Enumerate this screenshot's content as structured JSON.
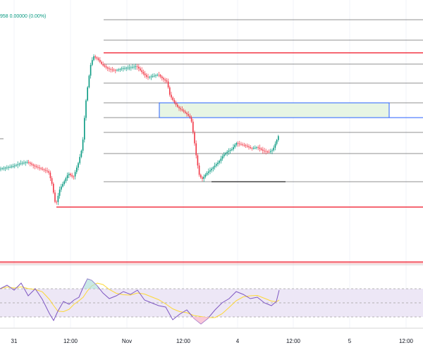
{
  "legend": {
    "ohlc_text": "958  0.00000 (0.00%)"
  },
  "time_axis": {
    "labels": [
      "31",
      "12:00",
      "Nov",
      "12:00",
      "4",
      "12:00",
      "5",
      "12:00"
    ]
  },
  "colors": {
    "up": "#089981",
    "down": "#f23645",
    "fib_line": "#6b6b6b",
    "support_resistance": "#f23645",
    "zone_fill": "#e7f5e4",
    "zone_border": "#2962ff",
    "rsi_line": "#7e57c2",
    "rsi_ma": "#fdd835",
    "rsi_band": "#ede7f6"
  },
  "chart_data": {
    "type": "candlestick",
    "price_points": [
      [
        0,
        240
      ],
      [
        10,
        238
      ],
      [
        20,
        236
      ],
      [
        30,
        232
      ],
      [
        40,
        230
      ],
      [
        50,
        236
      ],
      [
        60,
        240
      ],
      [
        70,
        244
      ],
      [
        75,
        262
      ],
      [
        80,
        292
      ],
      [
        86,
        268
      ],
      [
        92,
        258
      ],
      [
        98,
        246
      ],
      [
        105,
        252
      ],
      [
        112,
        232
      ],
      [
        118,
        208
      ],
      [
        122,
        152
      ],
      [
        126,
        118
      ],
      [
        130,
        90
      ],
      [
        134,
        80
      ],
      [
        140,
        84
      ],
      [
        146,
        92
      ],
      [
        155,
        98
      ],
      [
        165,
        100
      ],
      [
        175,
        97
      ],
      [
        185,
        96
      ],
      [
        195,
        94
      ],
      [
        202,
        102
      ],
      [
        210,
        110
      ],
      [
        218,
        108
      ],
      [
        226,
        106
      ],
      [
        232,
        112
      ],
      [
        238,
        116
      ],
      [
        242,
        135
      ],
      [
        248,
        145
      ],
      [
        254,
        153
      ],
      [
        260,
        157
      ],
      [
        266,
        162
      ],
      [
        272,
        168
      ],
      [
        276,
        195
      ],
      [
        280,
        226
      ],
      [
        284,
        250
      ],
      [
        288,
        254
      ],
      [
        294,
        246
      ],
      [
        300,
        241
      ],
      [
        306,
        235
      ],
      [
        312,
        229
      ],
      [
        318,
        220
      ],
      [
        324,
        215
      ],
      [
        330,
        212
      ],
      [
        336,
        203
      ],
      [
        342,
        205
      ],
      [
        350,
        207
      ],
      [
        358,
        211
      ],
      [
        366,
        209
      ],
      [
        374,
        214
      ],
      [
        382,
        216
      ],
      [
        388,
        213
      ],
      [
        392,
        203
      ],
      [
        396,
        193
      ]
    ],
    "rsi_points": [
      [
        0,
        410
      ],
      [
        10,
        405
      ],
      [
        20,
        412
      ],
      [
        30,
        402
      ],
      [
        40,
        420
      ],
      [
        50,
        410
      ],
      [
        60,
        425
      ],
      [
        70,
        445
      ],
      [
        76,
        455
      ],
      [
        82,
        442
      ],
      [
        90,
        428
      ],
      [
        98,
        432
      ],
      [
        105,
        426
      ],
      [
        112,
        422
      ],
      [
        118,
        408
      ],
      [
        124,
        396
      ],
      [
        130,
        398
      ],
      [
        138,
        406
      ],
      [
        146,
        416
      ],
      [
        155,
        424
      ],
      [
        165,
        420
      ],
      [
        175,
        414
      ],
      [
        185,
        418
      ],
      [
        195,
        412
      ],
      [
        205,
        426
      ],
      [
        215,
        430
      ],
      [
        225,
        434
      ],
      [
        235,
        436
      ],
      [
        245,
        454
      ],
      [
        255,
        446
      ],
      [
        265,
        440
      ],
      [
        275,
        452
      ],
      [
        285,
        460
      ],
      [
        295,
        452
      ],
      [
        305,
        440
      ],
      [
        315,
        430
      ],
      [
        325,
        424
      ],
      [
        335,
        414
      ],
      [
        345,
        418
      ],
      [
        355,
        424
      ],
      [
        365,
        422
      ],
      [
        375,
        430
      ],
      [
        385,
        434
      ],
      [
        392,
        428
      ],
      [
        396,
        412
      ]
    ],
    "fib_levels": [
      28,
      57,
      75,
      91,
      118,
      146,
      167,
      188,
      218,
      258
    ],
    "resistance_level": 75,
    "support_level": 294,
    "lower_level": 372,
    "zone": {
      "top": 146,
      "bottom": 167
    }
  }
}
